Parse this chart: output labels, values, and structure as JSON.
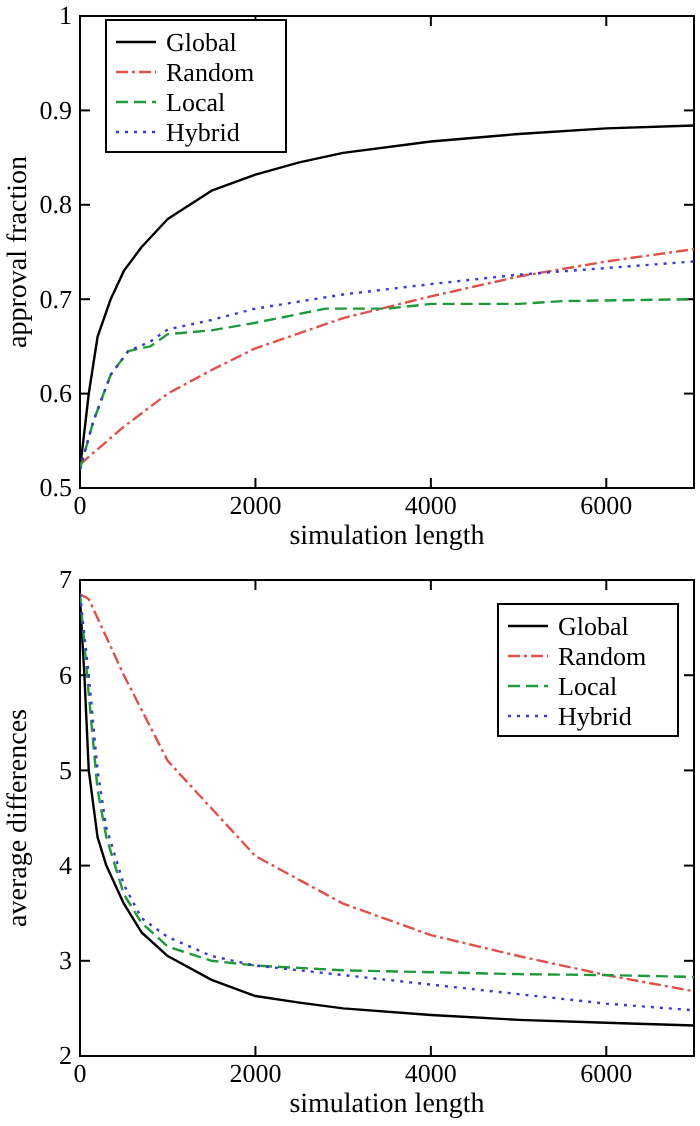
{
  "chart_data": [
    {
      "type": "line",
      "xlabel": "simulation length",
      "ylabel": "approval fraction",
      "xlim": [
        0,
        7000
      ],
      "xticks": [
        0,
        2000,
        4000,
        6000
      ],
      "ylim": [
        0.5,
        1
      ],
      "yticks": [
        0.5,
        0.6,
        0.7,
        0.8,
        0.9,
        1
      ],
      "legend": "top left",
      "grid": false,
      "series": [
        {
          "name": "Global",
          "color": "#000000",
          "line_style": "solid",
          "x": [
            0,
            100,
            200,
            350,
            500,
            700,
            1000,
            1500,
            2000,
            2500,
            3000,
            4000,
            5000,
            6000,
            7000
          ],
          "values": [
            0.52,
            0.6,
            0.66,
            0.7,
            0.73,
            0.755,
            0.785,
            0.815,
            0.832,
            0.845,
            0.855,
            0.867,
            0.875,
            0.881,
            0.884
          ]
        },
        {
          "name": "Random",
          "color": "#e0504a",
          "line_style": "dashdot",
          "x": [
            0,
            500,
            1000,
            1500,
            2000,
            3000,
            4000,
            5000,
            6000,
            7000
          ],
          "values": [
            0.525,
            0.565,
            0.6,
            0.625,
            0.648,
            0.68,
            0.703,
            0.724,
            0.74,
            0.753
          ]
        },
        {
          "name": "Local",
          "color": "#1f9a3a",
          "line_style": "dashed",
          "x": [
            0,
            150,
            350,
            550,
            800,
            1000,
            1500,
            2000,
            2800,
            3500,
            4000,
            5000,
            5500,
            7000
          ],
          "values": [
            0.52,
            0.57,
            0.62,
            0.645,
            0.65,
            0.663,
            0.667,
            0.675,
            0.69,
            0.69,
            0.695,
            0.695,
            0.698,
            0.7
          ]
        },
        {
          "name": "Hybrid",
          "color": "#3a3ad0",
          "line_style": "dotted",
          "x": [
            0,
            150,
            350,
            550,
            800,
            1000,
            1500,
            2000,
            3000,
            4000,
            5000,
            6000,
            7000
          ],
          "values": [
            0.52,
            0.57,
            0.62,
            0.645,
            0.655,
            0.668,
            0.678,
            0.69,
            0.705,
            0.716,
            0.726,
            0.733,
            0.74
          ]
        }
      ]
    },
    {
      "type": "line",
      "xlabel": "simulation length",
      "ylabel": "average differences",
      "xlim": [
        0,
        7000
      ],
      "xticks": [
        0,
        2000,
        4000,
        6000
      ],
      "ylim": [
        2,
        7
      ],
      "yticks": [
        2,
        3,
        4,
        5,
        6,
        7
      ],
      "legend": "top right",
      "grid": false,
      "series": [
        {
          "name": "Global",
          "color": "#000000",
          "line_style": "solid",
          "x": [
            0,
            50,
            100,
            200,
            300,
            500,
            700,
            1000,
            1500,
            2000,
            2500,
            3000,
            4000,
            5000,
            6000,
            7000
          ],
          "values": [
            6.8,
            6.0,
            5.0,
            4.3,
            4.0,
            3.6,
            3.3,
            3.05,
            2.8,
            2.63,
            2.56,
            2.5,
            2.43,
            2.38,
            2.35,
            2.32
          ]
        },
        {
          "name": "Random",
          "color": "#e0504a",
          "line_style": "dashdot",
          "x": [
            0,
            100,
            300,
            500,
            1000,
            1500,
            2000,
            2500,
            3000,
            4000,
            5000,
            6000,
            7000
          ],
          "values": [
            6.85,
            6.8,
            6.4,
            6.0,
            5.1,
            4.6,
            4.1,
            3.85,
            3.6,
            3.27,
            3.05,
            2.85,
            2.68
          ]
        },
        {
          "name": "Local",
          "color": "#1f9a3a",
          "line_style": "dashed",
          "x": [
            0,
            100,
            200,
            300,
            500,
            700,
            1000,
            1500,
            2000,
            3000,
            4000,
            5000,
            6000,
            7000
          ],
          "values": [
            6.85,
            5.8,
            4.8,
            4.3,
            3.7,
            3.4,
            3.15,
            3.0,
            2.95,
            2.9,
            2.88,
            2.86,
            2.85,
            2.83
          ]
        },
        {
          "name": "Hybrid",
          "color": "#3a3ad0",
          "line_style": "dotted",
          "x": [
            0,
            100,
            200,
            300,
            500,
            700,
            1000,
            1500,
            2000,
            3000,
            4000,
            5000,
            6000,
            7000
          ],
          "values": [
            6.85,
            6.0,
            5.0,
            4.4,
            3.8,
            3.45,
            3.25,
            3.05,
            2.95,
            2.85,
            2.75,
            2.65,
            2.55,
            2.48
          ]
        }
      ]
    }
  ]
}
